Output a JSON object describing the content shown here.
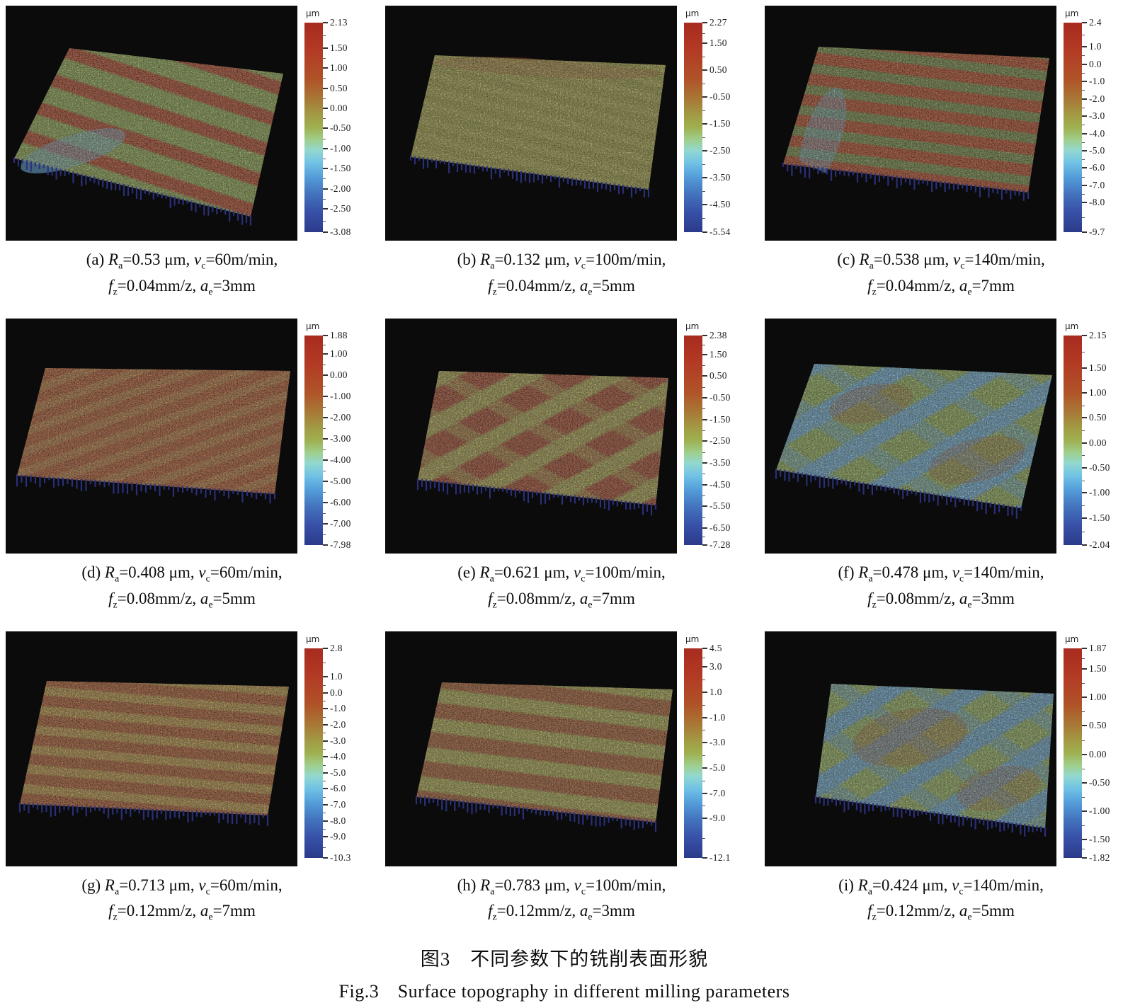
{
  "figure": {
    "caption_zh": "图3　不同参数下的铣削表面形貌",
    "caption_en": "Fig.3　Surface topography in different milling parameters",
    "units": {
      "ra": "μm",
      "vc": "m/min",
      "fz": "mm/z",
      "ae": "mm"
    },
    "colorbar_unit": "μm",
    "panels": [
      {
        "label": "(a)",
        "ra": "0.53",
        "vc": "60",
        "fz": "0.04",
        "ae": "3",
        "colorbar": {
          "unit": "μm",
          "ticks": [
            "2.13",
            "1.50",
            "1.00",
            "0.50",
            "0.00",
            "-0.50",
            "-1.00",
            "-1.50",
            "-2.00",
            "-2.50",
            "-3.08"
          ]
        },
        "surface": {
          "base_color": "#8aa44e",
          "stripe_color": "#ab3a22",
          "accent_color": "#74add6"
        }
      },
      {
        "label": "(b)",
        "ra": "0.132",
        "vc": "100",
        "fz": "0.04",
        "ae": "5",
        "colorbar": {
          "unit": "μm",
          "ticks": [
            "2.27",
            "1.50",
            "0.50",
            "-0.50",
            "-1.50",
            "-2.50",
            "-3.50",
            "-4.50",
            "-5.54"
          ]
        },
        "surface": {
          "base_color": "#99973f",
          "stripe_color": "#a7a24a",
          "accent_color": "#a85a30"
        }
      },
      {
        "label": "(c)",
        "ra": "0.538",
        "vc": "140",
        "fz": "0.04",
        "ae": "7",
        "colorbar": {
          "unit": "μm",
          "ticks": [
            "2.4",
            "1.0",
            "0.0",
            "-1.0",
            "-2.0",
            "-3.0",
            "-4.0",
            "-5.0",
            "-6.0",
            "-7.0",
            "-8.0",
            "-9.7"
          ]
        },
        "surface": {
          "base_color": "#6d8340",
          "stripe_color": "#b03d1e",
          "accent_color": "#6fa9d4"
        }
      },
      {
        "label": "(d)",
        "ra": "0.408",
        "vc": "60",
        "fz": "0.08",
        "ae": "5",
        "colorbar": {
          "unit": "μm",
          "ticks": [
            "1.88",
            "1.00",
            "0.00",
            "-1.00",
            "-2.00",
            "-3.00",
            "-4.00",
            "-5.00",
            "-6.00",
            "-7.00",
            "-7.98"
          ]
        },
        "surface": {
          "base_color": "#ad4e28",
          "stripe_color": "#b4703a",
          "accent_color": "#b4703a"
        }
      },
      {
        "label": "(e)",
        "ra": "0.621",
        "vc": "100",
        "fz": "0.08",
        "ae": "7",
        "colorbar": {
          "unit": "μm",
          "ticks": [
            "2.38",
            "1.50",
            "0.50",
            "-0.50",
            "-1.50",
            "-2.50",
            "-3.50",
            "-4.50",
            "-5.50",
            "-6.50",
            "-7.28"
          ]
        },
        "surface": {
          "base_color": "#9e3c26",
          "stripe_color": "#a8a14c",
          "cross_color": "#a8a14c",
          "accent_color": "#a8a14c"
        }
      },
      {
        "label": "(f)",
        "ra": "0.478",
        "vc": "140",
        "fz": "0.08",
        "ae": "3",
        "colorbar": {
          "unit": "μm",
          "ticks": [
            "2.15",
            "1.50",
            "1.00",
            "0.50",
            "0.00",
            "-0.50",
            "-1.00",
            "-1.50",
            "-2.04"
          ]
        },
        "surface": {
          "base_color": "#8cab55",
          "stripe_color": "#66a8d8",
          "cross_color": "#66a8d8",
          "accent_color": "#9e5a32"
        }
      },
      {
        "label": "(g)",
        "ra": "0.713",
        "vc": "60",
        "fz": "0.12",
        "ae": "7",
        "colorbar": {
          "unit": "μm",
          "ticks": [
            "2.8",
            "1.0",
            "0.0",
            "-1.0",
            "-2.0",
            "-3.0",
            "-4.0",
            "-5.0",
            "-6.0",
            "-7.0",
            "-8.0",
            "-9.0",
            "-10.3"
          ]
        },
        "surface": {
          "base_color": "#a84e27",
          "stripe_color": "#b98f41",
          "accent_color": "#b98f41"
        }
      },
      {
        "label": "(h)",
        "ra": "0.783",
        "vc": "100",
        "fz": "0.12",
        "ae": "3",
        "colorbar": {
          "unit": "μm",
          "ticks": [
            "4.5",
            "3.0",
            "1.0",
            "-1.0",
            "-3.0",
            "-5.0",
            "-7.0",
            "-9.0",
            "-12.1"
          ]
        },
        "surface": {
          "base_color": "#a0502a",
          "stripe_color": "#a9a64c",
          "accent_color": "#a9a64c"
        }
      },
      {
        "label": "(i)",
        "ra": "0.424",
        "vc": "140",
        "fz": "0.12",
        "ae": "5",
        "colorbar": {
          "unit": "μm",
          "ticks": [
            "1.87",
            "1.50",
            "1.00",
            "0.50",
            "0.00",
            "-0.50",
            "-1.00",
            "-1.50",
            "-1.82"
          ]
        },
        "surface": {
          "base_color": "#8fae5c",
          "stripe_color": "#63a2d2",
          "cross_color": "#63a2d2",
          "accent_color": "#a05a2e"
        }
      }
    ]
  }
}
